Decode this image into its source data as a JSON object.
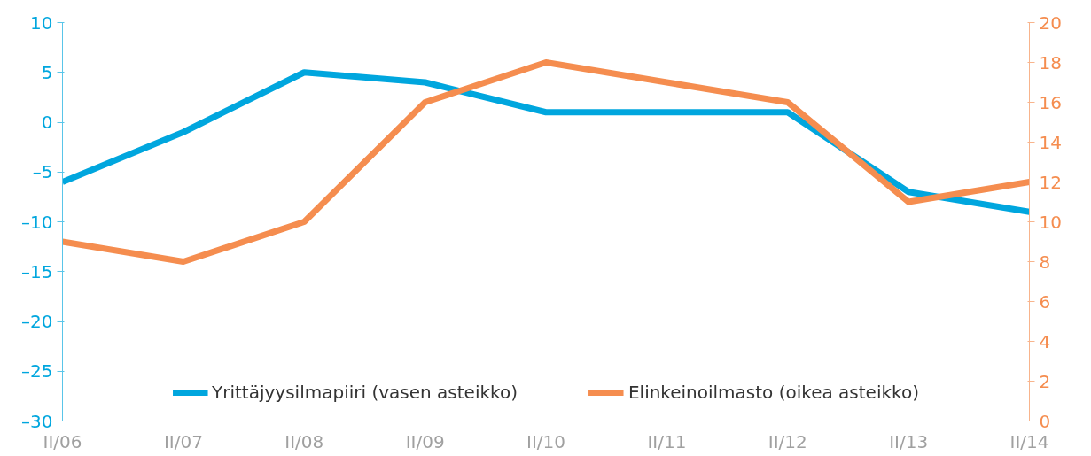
{
  "chart_data": {
    "type": "line",
    "categories": [
      "II/06",
      "II/07",
      "II/08",
      "II/09",
      "II/10",
      "II/11",
      "II/12",
      "II/13",
      "II/14"
    ],
    "series": [
      {
        "name": "Yrittäjyysilmapiiri (vasen asteikko)",
        "color": "#00a6de",
        "values": [
          -6,
          -1,
          5,
          4,
          1,
          1,
          1,
          -7,
          -9
        ]
      },
      {
        "name": "Elinkeinoilmasto (oikea asteikko)",
        "color": "#f58d4f",
        "axis": "y2",
        "values": [
          9,
          8,
          10,
          16,
          18,
          17,
          16,
          11,
          12
        ]
      }
    ],
    "ylim": [
      -30,
      10
    ],
    "yticks": [
      {
        "value": -30,
        "label": "–30"
      },
      {
        "value": -25,
        "label": "–25"
      },
      {
        "value": -20,
        "label": "–20"
      },
      {
        "value": -15,
        "label": "–15"
      },
      {
        "value": -10,
        "label": "–10"
      },
      {
        "value": -5,
        "label": "–5"
      },
      0,
      5,
      10
    ],
    "y2lim": [
      0,
      20
    ],
    "y2ticks": [
      0,
      2,
      4,
      6,
      8,
      10,
      12,
      14,
      16,
      18,
      20
    ],
    "grid": false,
    "legend": "bottom",
    "marker": "none",
    "line_style": "solid"
  }
}
